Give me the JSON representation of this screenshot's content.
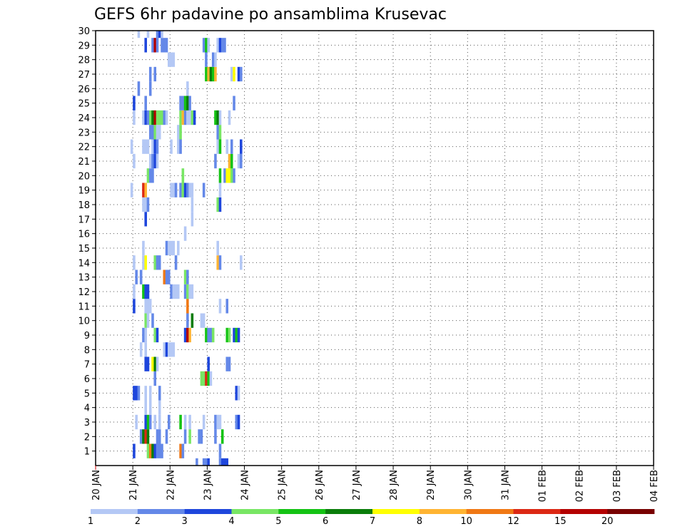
{
  "chart_data": {
    "type": "heatmap",
    "title": "GEFS 6hr padavine po ansamblima Krusevac",
    "x_labels": [
      "20 JAN",
      "21 JAN",
      "22 JAN",
      "23 JAN",
      "24 JAN",
      "25 JAN",
      "26 JAN",
      "27 JAN",
      "28 JAN",
      "29 JAN",
      "30 JAN",
      "31 JAN",
      "01 FEB",
      "02 FEB",
      "03 FEB",
      "04 FEB"
    ],
    "x_range": [
      0,
      60
    ],
    "y_labels": [
      "1",
      "2",
      "3",
      "4",
      "5",
      "6",
      "7",
      "8",
      "9",
      "10",
      "11",
      "12",
      "13",
      "14",
      "15",
      "16",
      "17",
      "18",
      "19",
      "20",
      "21",
      "22",
      "23",
      "24",
      "25",
      "26",
      "27",
      "28",
      "29",
      "30"
    ],
    "y_range": [
      0,
      30
    ],
    "grid": true,
    "legend": {
      "position": "bottom",
      "labels": [
        "1",
        "2",
        "3",
        "4",
        "5",
        "6",
        "7",
        "8",
        "10",
        "12",
        "15",
        "20"
      ],
      "colors": [
        "#b4c8f5",
        "#6488e8",
        "#1e46dc",
        "#78e664",
        "#14c314",
        "#0a7d0a",
        "#ffff00",
        "#ffb432",
        "#f07814",
        "#dc2814",
        "#b40000",
        "#780000"
      ]
    },
    "cells": [
      [
        43,
        0,
        2
      ],
      [
        46,
        0,
        2
      ],
      [
        47,
        0,
        2
      ],
      [
        48,
        0,
        3
      ],
      [
        53,
        0,
        2
      ],
      [
        54,
        0,
        3
      ],
      [
        55,
        0,
        3
      ],
      [
        56,
        0,
        3
      ],
      [
        16,
        1,
        3
      ],
      [
        22,
        1,
        4
      ],
      [
        23,
        1,
        9
      ],
      [
        24,
        1,
        6
      ],
      [
        25,
        1,
        3
      ],
      [
        26,
        1,
        2
      ],
      [
        27,
        1,
        2
      ],
      [
        28,
        1,
        2
      ],
      [
        36,
        1,
        9
      ],
      [
        37,
        1,
        2
      ],
      [
        53,
        1,
        2
      ],
      [
        19,
        2,
        2
      ],
      [
        20,
        2,
        6
      ],
      [
        21,
        2,
        10
      ],
      [
        22,
        2,
        6
      ],
      [
        26,
        2,
        2
      ],
      [
        27,
        2,
        2
      ],
      [
        30,
        2,
        2
      ],
      [
        38,
        2,
        2
      ],
      [
        40,
        2,
        4
      ],
      [
        44,
        2,
        2
      ],
      [
        45,
        2,
        2
      ],
      [
        51,
        2,
        2
      ],
      [
        54,
        2,
        5
      ],
      [
        17,
        3,
        1
      ],
      [
        21,
        3,
        3
      ],
      [
        22,
        3,
        5
      ],
      [
        23,
        3,
        2
      ],
      [
        25,
        3,
        1
      ],
      [
        27,
        3,
        1
      ],
      [
        31,
        3,
        2
      ],
      [
        36,
        3,
        5
      ],
      [
        38,
        3,
        1
      ],
      [
        40,
        3,
        1
      ],
      [
        46,
        3,
        1
      ],
      [
        51,
        3,
        2
      ],
      [
        52,
        3,
        1
      ],
      [
        53,
        3,
        1
      ],
      [
        60,
        3,
        2
      ],
      [
        61,
        3,
        3
      ],
      [
        21,
        4,
        1
      ],
      [
        23,
        4,
        1
      ],
      [
        27,
        4,
        1
      ],
      [
        16,
        5,
        3
      ],
      [
        17,
        5,
        3
      ],
      [
        18,
        5,
        2
      ],
      [
        21,
        5,
        1
      ],
      [
        23,
        5,
        1
      ],
      [
        27,
        5,
        2
      ],
      [
        60,
        5,
        3
      ],
      [
        61,
        5,
        1
      ],
      [
        25,
        6,
        2
      ],
      [
        45,
        6,
        4
      ],
      [
        46,
        6,
        4
      ],
      [
        47,
        6,
        10
      ],
      [
        48,
        6,
        5
      ],
      [
        49,
        6,
        1
      ],
      [
        21,
        7,
        3
      ],
      [
        22,
        7,
        3
      ],
      [
        24,
        7,
        7
      ],
      [
        25,
        7,
        6
      ],
      [
        26,
        7,
        1
      ],
      [
        48,
        7,
        3
      ],
      [
        56,
        7,
        2
      ],
      [
        57,
        7,
        2
      ],
      [
        19,
        8,
        1
      ],
      [
        21,
        8,
        1
      ],
      [
        29,
        8,
        1
      ],
      [
        30,
        8,
        3
      ],
      [
        31,
        8,
        1
      ],
      [
        32,
        8,
        1
      ],
      [
        33,
        8,
        1
      ],
      [
        20,
        9,
        2
      ],
      [
        21,
        9,
        1
      ],
      [
        25,
        9,
        4
      ],
      [
        26,
        9,
        3
      ],
      [
        38,
        9,
        3
      ],
      [
        39,
        9,
        11
      ],
      [
        40,
        9,
        8
      ],
      [
        47,
        9,
        5
      ],
      [
        48,
        9,
        2
      ],
      [
        49,
        9,
        2
      ],
      [
        50,
        9,
        4
      ],
      [
        56,
        9,
        5
      ],
      [
        57,
        9,
        4
      ],
      [
        59,
        9,
        3
      ],
      [
        60,
        9,
        5
      ],
      [
        61,
        9,
        3
      ],
      [
        21,
        10,
        4
      ],
      [
        22,
        10,
        1
      ],
      [
        24,
        10,
        2
      ],
      [
        39,
        10,
        2
      ],
      [
        41,
        10,
        6
      ],
      [
        45,
        10,
        1
      ],
      [
        46,
        10,
        1
      ],
      [
        16,
        11,
        3
      ],
      [
        21,
        11,
        1
      ],
      [
        22,
        11,
        1
      ],
      [
        23,
        11,
        1
      ],
      [
        39,
        11,
        9
      ],
      [
        53,
        11,
        1
      ],
      [
        56,
        11,
        2
      ],
      [
        16,
        12,
        1
      ],
      [
        20,
        12,
        5
      ],
      [
        21,
        12,
        3
      ],
      [
        22,
        12,
        3
      ],
      [
        32,
        12,
        2
      ],
      [
        33,
        12,
        1
      ],
      [
        34,
        12,
        1
      ],
      [
        35,
        12,
        1
      ],
      [
        38,
        12,
        2
      ],
      [
        39,
        12,
        4
      ],
      [
        40,
        12,
        1
      ],
      [
        41,
        12,
        1
      ],
      [
        17,
        13,
        2
      ],
      [
        19,
        13,
        2
      ],
      [
        29,
        13,
        9
      ],
      [
        30,
        13,
        2
      ],
      [
        31,
        13,
        2
      ],
      [
        38,
        13,
        4
      ],
      [
        39,
        13,
        2
      ],
      [
        16,
        14,
        1
      ],
      [
        20,
        14,
        1
      ],
      [
        21,
        14,
        7
      ],
      [
        25,
        14,
        4
      ],
      [
        26,
        14,
        2
      ],
      [
        27,
        14,
        2
      ],
      [
        34,
        14,
        2
      ],
      [
        52,
        14,
        8
      ],
      [
        53,
        14,
        2
      ],
      [
        62,
        14,
        1
      ],
      [
        20,
        15,
        1
      ],
      [
        30,
        15,
        2
      ],
      [
        31,
        15,
        1
      ],
      [
        32,
        15,
        1
      ],
      [
        33,
        15,
        1
      ],
      [
        35,
        15,
        1
      ],
      [
        52,
        15,
        1
      ],
      [
        38,
        16,
        1
      ],
      [
        21,
        17,
        3
      ],
      [
        41,
        17,
        1
      ],
      [
        20,
        18,
        1
      ],
      [
        21,
        18,
        1
      ],
      [
        22,
        18,
        2
      ],
      [
        41,
        18,
        1
      ],
      [
        52,
        18,
        4
      ],
      [
        53,
        18,
        3
      ],
      [
        15,
        19,
        1
      ],
      [
        20,
        19,
        10
      ],
      [
        21,
        19,
        8
      ],
      [
        32,
        19,
        1
      ],
      [
        33,
        19,
        1
      ],
      [
        34,
        19,
        2
      ],
      [
        36,
        19,
        2
      ],
      [
        37,
        19,
        4
      ],
      [
        38,
        19,
        3
      ],
      [
        39,
        19,
        2
      ],
      [
        40,
        19,
        1
      ],
      [
        41,
        19,
        1
      ],
      [
        46,
        19,
        2
      ],
      [
        53,
        19,
        1
      ],
      [
        22,
        20,
        4
      ],
      [
        23,
        20,
        2
      ],
      [
        24,
        20,
        2
      ],
      [
        37,
        20,
        4
      ],
      [
        53,
        20,
        5
      ],
      [
        55,
        20,
        2
      ],
      [
        56,
        20,
        7
      ],
      [
        57,
        20,
        7
      ],
      [
        58,
        20,
        4
      ],
      [
        59,
        20,
        2
      ],
      [
        16,
        21,
        1
      ],
      [
        23,
        21,
        1
      ],
      [
        24,
        21,
        2
      ],
      [
        25,
        21,
        3
      ],
      [
        26,
        21,
        1
      ],
      [
        51,
        21,
        2
      ],
      [
        57,
        21,
        8
      ],
      [
        58,
        21,
        5
      ],
      [
        61,
        21,
        1
      ],
      [
        62,
        21,
        2
      ],
      [
        15,
        22,
        1
      ],
      [
        20,
        22,
        1
      ],
      [
        21,
        22,
        1
      ],
      [
        22,
        22,
        1
      ],
      [
        24,
        22,
        1
      ],
      [
        25,
        22,
        3
      ],
      [
        26,
        22,
        2
      ],
      [
        32,
        22,
        1
      ],
      [
        35,
        22,
        1
      ],
      [
        36,
        22,
        2
      ],
      [
        52,
        22,
        1
      ],
      [
        53,
        22,
        5
      ],
      [
        56,
        22,
        1
      ],
      [
        58,
        22,
        2
      ],
      [
        62,
        22,
        3
      ],
      [
        23,
        23,
        2
      ],
      [
        24,
        23,
        2
      ],
      [
        25,
        23,
        4
      ],
      [
        26,
        23,
        1
      ],
      [
        27,
        23,
        1
      ],
      [
        35,
        23,
        1
      ],
      [
        36,
        23,
        4
      ],
      [
        52,
        23,
        2
      ],
      [
        53,
        23,
        4
      ],
      [
        16,
        24,
        1
      ],
      [
        20,
        24,
        1
      ],
      [
        21,
        24,
        3
      ],
      [
        22,
        24,
        2
      ],
      [
        23,
        24,
        4
      ],
      [
        24,
        24,
        6
      ],
      [
        25,
        24,
        11
      ],
      [
        26,
        24,
        4
      ],
      [
        27,
        24,
        4
      ],
      [
        28,
        24,
        4
      ],
      [
        29,
        24,
        2
      ],
      [
        30,
        24,
        1
      ],
      [
        36,
        24,
        4
      ],
      [
        37,
        24,
        8
      ],
      [
        38,
        24,
        2
      ],
      [
        39,
        24,
        1
      ],
      [
        40,
        24,
        1
      ],
      [
        41,
        24,
        4
      ],
      [
        42,
        24,
        3
      ],
      [
        51,
        24,
        5
      ],
      [
        52,
        24,
        6
      ],
      [
        53,
        24,
        1
      ],
      [
        57,
        24,
        1
      ],
      [
        16,
        25,
        3
      ],
      [
        21,
        25,
        2
      ],
      [
        36,
        25,
        2
      ],
      [
        37,
        25,
        2
      ],
      [
        38,
        25,
        5
      ],
      [
        39,
        25,
        6
      ],
      [
        40,
        25,
        2
      ],
      [
        59,
        25,
        2
      ],
      [
        18,
        26,
        2
      ],
      [
        23,
        26,
        2
      ],
      [
        39,
        26,
        1
      ],
      [
        23,
        27,
        2
      ],
      [
        25,
        27,
        2
      ],
      [
        47,
        27,
        5
      ],
      [
        48,
        27,
        8
      ],
      [
        49,
        27,
        6
      ],
      [
        50,
        27,
        5
      ],
      [
        51,
        27,
        8
      ],
      [
        58,
        27,
        1
      ],
      [
        59,
        27,
        7
      ],
      [
        61,
        27,
        3
      ],
      [
        62,
        27,
        2
      ],
      [
        31,
        28,
        1
      ],
      [
        32,
        28,
        1
      ],
      [
        33,
        28,
        1
      ],
      [
        47,
        28,
        2
      ],
      [
        50,
        28,
        2
      ],
      [
        51,
        28,
        1
      ],
      [
        21,
        29,
        3
      ],
      [
        24,
        29,
        2
      ],
      [
        25,
        29,
        11
      ],
      [
        26,
        29,
        2
      ],
      [
        28,
        29,
        2
      ],
      [
        29,
        29,
        2
      ],
      [
        30,
        29,
        2
      ],
      [
        46,
        29,
        2
      ],
      [
        47,
        29,
        5
      ],
      [
        48,
        29,
        1
      ],
      [
        52,
        29,
        1
      ],
      [
        53,
        29,
        3
      ],
      [
        54,
        29,
        2
      ],
      [
        55,
        29,
        2
      ],
      [
        18,
        30,
        1
      ],
      [
        22,
        30,
        1
      ],
      [
        26,
        30,
        2
      ],
      [
        27,
        30,
        3
      ],
      [
        28,
        30,
        1
      ]
    ]
  }
}
